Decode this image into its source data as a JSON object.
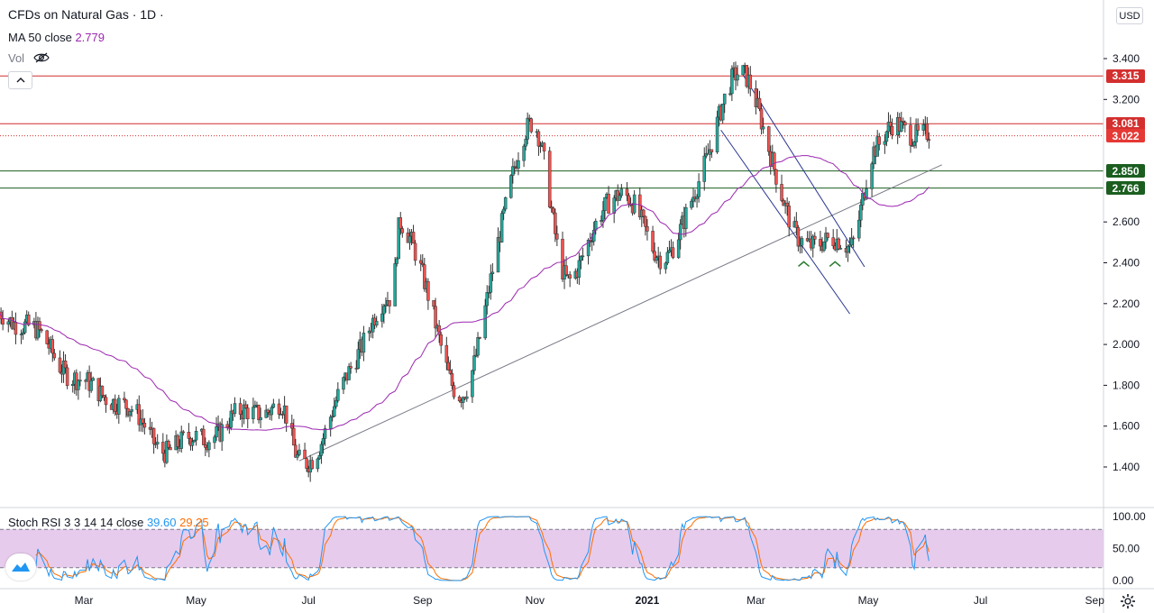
{
  "legend": {
    "symbol": "CFDs on Natural Gas · 1D ·",
    "ma_label": "MA 50 close",
    "ma_value": "2.779",
    "vol_label": "Vol",
    "stoch_label": "Stoch RSI 3 3 14 14 close",
    "stoch_k": "39.60",
    "stoch_d": "29.25"
  },
  "currency": "USD",
  "price_tags": [
    {
      "label": "3.315",
      "value": 3.315,
      "color": "#d32f2f"
    },
    {
      "label": "3.081",
      "value": 3.081,
      "color": "#d32f2f"
    },
    {
      "label": "3.022",
      "value": 3.022,
      "color": "#e53935"
    },
    {
      "label": "2.850",
      "value": 2.85,
      "color": "#1b5e20"
    },
    {
      "label": "2.766",
      "value": 2.766,
      "color": "#1b5e20"
    }
  ],
  "colors": {
    "up": "#26a69a",
    "down": "#ef5350",
    "ma": "#9c27b0",
    "resistance": "#d32f2f",
    "support": "#1b5e20",
    "channel": "#283593",
    "trendline": "#787b86",
    "stoch_k": "#2196f3",
    "stoch_d": "#ff6d00",
    "stoch_band": "#e1bee7"
  },
  "icons": {
    "visibility": "eye-off-icon",
    "collapse": "chevron-up-icon",
    "logo": "tradingview-logo-icon",
    "settings": "gear-icon"
  },
  "chart_data": [
    {
      "type": "candlestick",
      "title": "CFDs on Natural Gas · 1D",
      "x_tick_labels": [
        "Mar",
        "May",
        "Jul",
        "Sep",
        "Nov",
        "2021",
        "Mar",
        "May",
        "Jul",
        "Sep"
      ],
      "y_tick_labels": [
        "1.400",
        "1.600",
        "1.800",
        "2.000",
        "2.200",
        "2.400",
        "2.600",
        "3.200",
        "3.400"
      ],
      "ylim": [
        1.22,
        3.55
      ],
      "grid": false,
      "key_prices": [
        {
          "x": "2020-01",
          "y": 2.15
        },
        {
          "x": "2020-03",
          "y": 1.75
        },
        {
          "x": "2020-04",
          "y": 1.5
        },
        {
          "x": "2020-06",
          "y": 1.7
        },
        {
          "x": "2020-06-26",
          "y": 1.43
        },
        {
          "x": "2020-08",
          "y": 2.2
        },
        {
          "x": "2020-08-20",
          "y": 2.6
        },
        {
          "x": "2020-09-21",
          "y": 1.78
        },
        {
          "x": "2020-10-30",
          "y": 3.06
        },
        {
          "x": "2020-11-20",
          "y": 2.33
        },
        {
          "x": "2020-12-15",
          "y": 2.75
        },
        {
          "x": "2021-01-10",
          "y": 2.45
        },
        {
          "x": "2021-02-22",
          "y": 3.31
        },
        {
          "x": "2021-03-25",
          "y": 2.52
        },
        {
          "x": "2021-04-20",
          "y": 2.48
        },
        {
          "x": "2021-05-05",
          "y": 2.95
        },
        {
          "x": "2021-05-17",
          "y": 3.08
        },
        {
          "x": "2021-06-03",
          "y": 3.02
        }
      ],
      "ma50": {
        "name": "MA 50 close",
        "last_value": 2.779
      },
      "horizontal_levels": [
        3.315,
        3.081,
        3.022,
        2.85,
        2.766
      ],
      "trendline": {
        "from": {
          "x": "2020-06-26",
          "y": 1.43
        },
        "to": {
          "x": "2021-06-10",
          "y": 2.88
        }
      },
      "channel": [
        {
          "from": {
            "x": "2021-02-22",
            "y": 3.32
          },
          "to": {
            "x": "2021-04-29",
            "y": 2.38
          }
        },
        {
          "from": {
            "x": "2021-02-10",
            "y": 3.05
          },
          "to": {
            "x": "2021-04-21",
            "y": 2.15
          }
        }
      ],
      "double_bottom_markers": [
        {
          "x": "2021-03-27",
          "y": 2.44
        },
        {
          "x": "2021-04-13",
          "y": 2.44
        }
      ]
    },
    {
      "type": "line",
      "title": "Stoch RSI 3 3 14 14 close",
      "y_tick_labels": [
        "100.00",
        "50.00",
        "0.00"
      ],
      "ylim": [
        -5,
        110
      ],
      "band": [
        20,
        80
      ],
      "series": [
        {
          "name": "K",
          "last_value": 39.6
        },
        {
          "name": "D",
          "last_value": 29.25
        }
      ]
    }
  ]
}
